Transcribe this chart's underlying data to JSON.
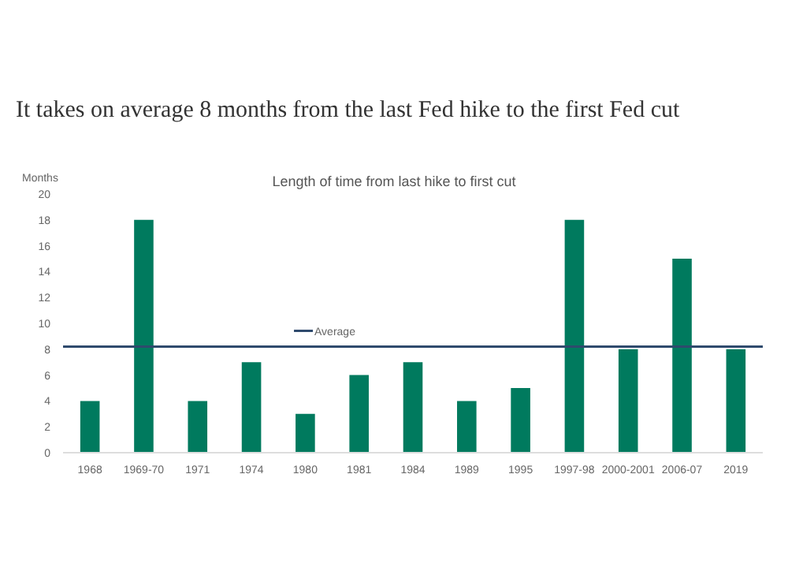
{
  "chart_data": {
    "type": "bar",
    "title": "It takes on average 8 months from the last Fed hike to the first Fed cut",
    "subtitle": "Length of time from last hike to first cut",
    "ylabel": "Months",
    "categories": [
      "1968",
      "1969-70",
      "1971",
      "1974",
      "1980",
      "1981",
      "1984",
      "1989",
      "1995",
      "1997-98",
      "2000-2001",
      "2006-07",
      "2019"
    ],
    "values": [
      4,
      18,
      4,
      7,
      3,
      6,
      7,
      4,
      5,
      18,
      8,
      15,
      8
    ],
    "color": "#007a5e",
    "ylim": [
      0,
      20
    ],
    "yticks": [
      0,
      2,
      4,
      6,
      8,
      10,
      12,
      14,
      16,
      18,
      20
    ],
    "grid": false,
    "ref_lines": [
      {
        "axis": "y",
        "value": 8.2,
        "label": "Average",
        "color": "#2f4a6d"
      }
    ]
  }
}
